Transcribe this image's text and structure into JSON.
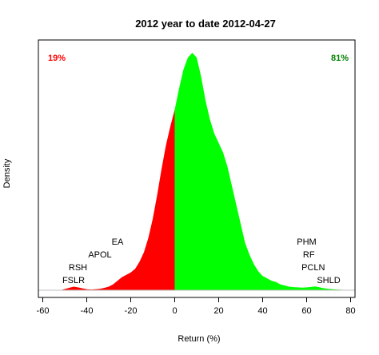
{
  "chart_data": {
    "type": "area",
    "title": "2012  year to date 2012-04-27",
    "xlabel": "Return (%)",
    "ylabel": "Density",
    "xlim": [
      -62,
      82
    ],
    "ylim": [
      0,
      1
    ],
    "xticks": [
      -60,
      -40,
      -20,
      0,
      20,
      40,
      60,
      80
    ],
    "y_tick_labels_shown": false,
    "split_at": 0,
    "colors": {
      "negative": "#ff0000",
      "positive": "#00ff00",
      "baseline": "#bebebe"
    },
    "percent_labels": [
      {
        "name": "negative",
        "text": "19%",
        "color": "#ff0000",
        "position": "top-left"
      },
      {
        "name": "positive",
        "text": "81%",
        "color": "#008000",
        "position": "top-right"
      }
    ],
    "stock_labels": {
      "left": [
        {
          "text": "EA",
          "x": -26
        },
        {
          "text": "APOL",
          "x": -34
        },
        {
          "text": "RSH",
          "x": -44
        },
        {
          "text": "FSLR",
          "x": -46
        }
      ],
      "right": [
        {
          "text": "PHM",
          "x": 60
        },
        {
          "text": "RF",
          "x": 61
        },
        {
          "text": "PCLN",
          "x": 63
        },
        {
          "text": "SHLD",
          "x": 70
        }
      ]
    },
    "density": {
      "x": [
        -52,
        -50,
        -48,
        -46,
        -44,
        -42,
        -40,
        -38,
        -36,
        -34,
        -32,
        -30,
        -28,
        -26,
        -24,
        -22,
        -20,
        -18,
        -16,
        -14,
        -12,
        -10,
        -8,
        -6,
        -4,
        -2,
        0,
        2,
        4,
        6,
        8,
        10,
        12,
        14,
        16,
        18,
        20,
        22,
        24,
        26,
        28,
        30,
        32,
        34,
        36,
        38,
        40,
        42,
        44,
        46,
        48,
        50,
        52,
        54,
        56,
        58,
        60,
        62,
        64,
        66,
        68,
        70,
        72,
        74,
        76,
        78
      ],
      "y": [
        0.0,
        0.005,
        0.01,
        0.015,
        0.012,
        0.008,
        0.004,
        0.003,
        0.004,
        0.006,
        0.01,
        0.015,
        0.025,
        0.04,
        0.055,
        0.065,
        0.075,
        0.09,
        0.12,
        0.16,
        0.22,
        0.3,
        0.4,
        0.51,
        0.61,
        0.69,
        0.76,
        0.85,
        0.93,
        0.98,
        1.0,
        0.98,
        0.9,
        0.8,
        0.72,
        0.66,
        0.62,
        0.58,
        0.52,
        0.44,
        0.36,
        0.28,
        0.2,
        0.15,
        0.11,
        0.08,
        0.06,
        0.05,
        0.04,
        0.035,
        0.025,
        0.02,
        0.015,
        0.013,
        0.012,
        0.011,
        0.012,
        0.014,
        0.016,
        0.012,
        0.008,
        0.006,
        0.004,
        0.003,
        0.002,
        0.0
      ]
    }
  }
}
